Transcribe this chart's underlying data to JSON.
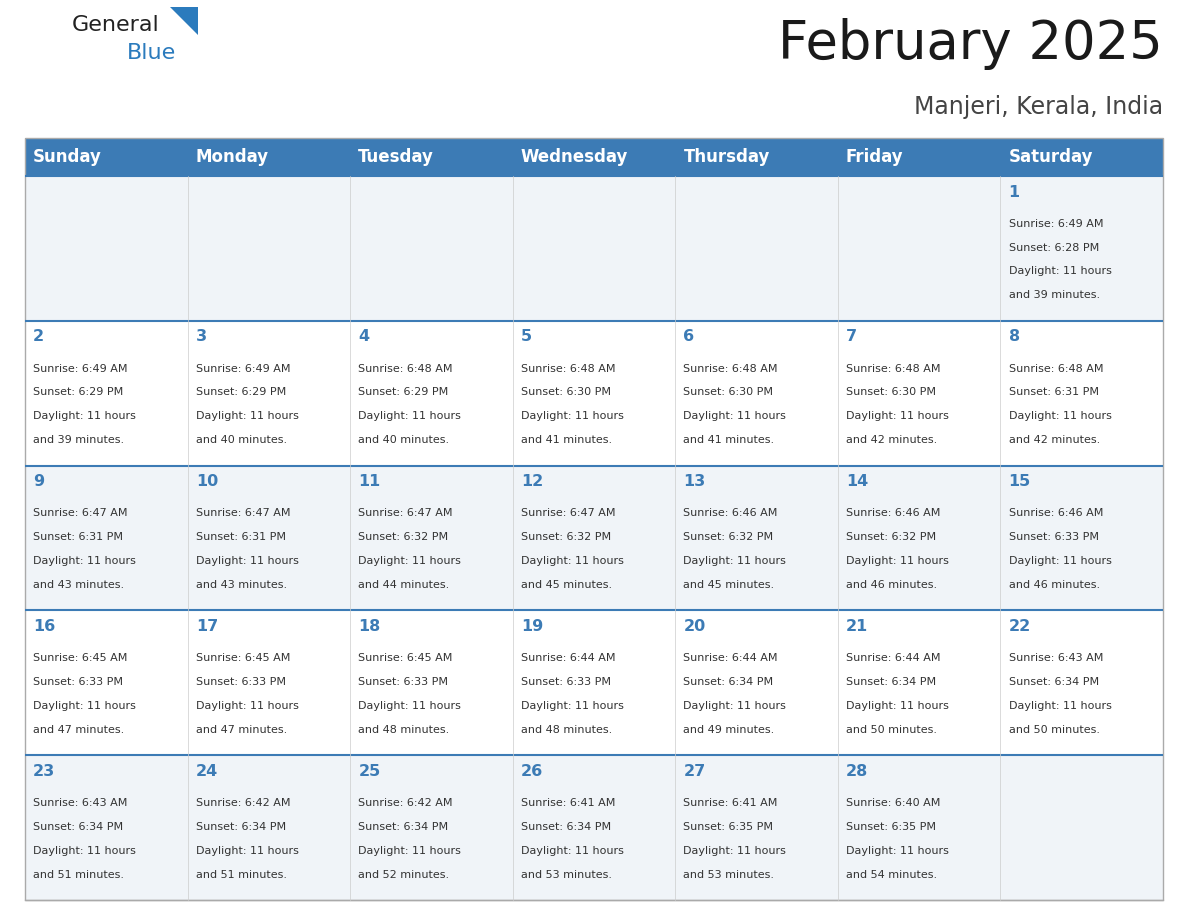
{
  "title": "February 2025",
  "subtitle": "Manjeri, Kerala, India",
  "header_bg": "#3C7BB5",
  "header_text_color": "#FFFFFF",
  "header_font_size": 12,
  "day_headers": [
    "Sunday",
    "Monday",
    "Tuesday",
    "Wednesday",
    "Thursday",
    "Friday",
    "Saturday"
  ],
  "title_font_size": 38,
  "subtitle_font_size": 17,
  "cell_bg_even": "#F0F4F8",
  "cell_bg_odd": "#FFFFFF",
  "day_num_color": "#3C7BB5",
  "info_color": "#333333",
  "logo_general_color": "#222222",
  "logo_blue_color": "#2B7BBD",
  "border_color": "#AAAAAA",
  "row_divider_color": "#3C7BB5",
  "days": [
    {
      "day": 1,
      "col": 6,
      "row": 0,
      "sunrise": "6:49 AM",
      "sunset": "6:28 PM",
      "daylight": "11 hours and 39 minutes."
    },
    {
      "day": 2,
      "col": 0,
      "row": 1,
      "sunrise": "6:49 AM",
      "sunset": "6:29 PM",
      "daylight": "11 hours and 39 minutes."
    },
    {
      "day": 3,
      "col": 1,
      "row": 1,
      "sunrise": "6:49 AM",
      "sunset": "6:29 PM",
      "daylight": "11 hours and 40 minutes."
    },
    {
      "day": 4,
      "col": 2,
      "row": 1,
      "sunrise": "6:48 AM",
      "sunset": "6:29 PM",
      "daylight": "11 hours and 40 minutes."
    },
    {
      "day": 5,
      "col": 3,
      "row": 1,
      "sunrise": "6:48 AM",
      "sunset": "6:30 PM",
      "daylight": "11 hours and 41 minutes."
    },
    {
      "day": 6,
      "col": 4,
      "row": 1,
      "sunrise": "6:48 AM",
      "sunset": "6:30 PM",
      "daylight": "11 hours and 41 minutes."
    },
    {
      "day": 7,
      "col": 5,
      "row": 1,
      "sunrise": "6:48 AM",
      "sunset": "6:30 PM",
      "daylight": "11 hours and 42 minutes."
    },
    {
      "day": 8,
      "col": 6,
      "row": 1,
      "sunrise": "6:48 AM",
      "sunset": "6:31 PM",
      "daylight": "11 hours and 42 minutes."
    },
    {
      "day": 9,
      "col": 0,
      "row": 2,
      "sunrise": "6:47 AM",
      "sunset": "6:31 PM",
      "daylight": "11 hours and 43 minutes."
    },
    {
      "day": 10,
      "col": 1,
      "row": 2,
      "sunrise": "6:47 AM",
      "sunset": "6:31 PM",
      "daylight": "11 hours and 43 minutes."
    },
    {
      "day": 11,
      "col": 2,
      "row": 2,
      "sunrise": "6:47 AM",
      "sunset": "6:32 PM",
      "daylight": "11 hours and 44 minutes."
    },
    {
      "day": 12,
      "col": 3,
      "row": 2,
      "sunrise": "6:47 AM",
      "sunset": "6:32 PM",
      "daylight": "11 hours and 45 minutes."
    },
    {
      "day": 13,
      "col": 4,
      "row": 2,
      "sunrise": "6:46 AM",
      "sunset": "6:32 PM",
      "daylight": "11 hours and 45 minutes."
    },
    {
      "day": 14,
      "col": 5,
      "row": 2,
      "sunrise": "6:46 AM",
      "sunset": "6:32 PM",
      "daylight": "11 hours and 46 minutes."
    },
    {
      "day": 15,
      "col": 6,
      "row": 2,
      "sunrise": "6:46 AM",
      "sunset": "6:33 PM",
      "daylight": "11 hours and 46 minutes."
    },
    {
      "day": 16,
      "col": 0,
      "row": 3,
      "sunrise": "6:45 AM",
      "sunset": "6:33 PM",
      "daylight": "11 hours and 47 minutes."
    },
    {
      "day": 17,
      "col": 1,
      "row": 3,
      "sunrise": "6:45 AM",
      "sunset": "6:33 PM",
      "daylight": "11 hours and 47 minutes."
    },
    {
      "day": 18,
      "col": 2,
      "row": 3,
      "sunrise": "6:45 AM",
      "sunset": "6:33 PM",
      "daylight": "11 hours and 48 minutes."
    },
    {
      "day": 19,
      "col": 3,
      "row": 3,
      "sunrise": "6:44 AM",
      "sunset": "6:33 PM",
      "daylight": "11 hours and 48 minutes."
    },
    {
      "day": 20,
      "col": 4,
      "row": 3,
      "sunrise": "6:44 AM",
      "sunset": "6:34 PM",
      "daylight": "11 hours and 49 minutes."
    },
    {
      "day": 21,
      "col": 5,
      "row": 3,
      "sunrise": "6:44 AM",
      "sunset": "6:34 PM",
      "daylight": "11 hours and 50 minutes."
    },
    {
      "day": 22,
      "col": 6,
      "row": 3,
      "sunrise": "6:43 AM",
      "sunset": "6:34 PM",
      "daylight": "11 hours and 50 minutes."
    },
    {
      "day": 23,
      "col": 0,
      "row": 4,
      "sunrise": "6:43 AM",
      "sunset": "6:34 PM",
      "daylight": "11 hours and 51 minutes."
    },
    {
      "day": 24,
      "col": 1,
      "row": 4,
      "sunrise": "6:42 AM",
      "sunset": "6:34 PM",
      "daylight": "11 hours and 51 minutes."
    },
    {
      "day": 25,
      "col": 2,
      "row": 4,
      "sunrise": "6:42 AM",
      "sunset": "6:34 PM",
      "daylight": "11 hours and 52 minutes."
    },
    {
      "day": 26,
      "col": 3,
      "row": 4,
      "sunrise": "6:41 AM",
      "sunset": "6:34 PM",
      "daylight": "11 hours and 53 minutes."
    },
    {
      "day": 27,
      "col": 4,
      "row": 4,
      "sunrise": "6:41 AM",
      "sunset": "6:35 PM",
      "daylight": "11 hours and 53 minutes."
    },
    {
      "day": 28,
      "col": 5,
      "row": 4,
      "sunrise": "6:40 AM",
      "sunset": "6:35 PM",
      "daylight": "11 hours and 54 minutes."
    }
  ]
}
